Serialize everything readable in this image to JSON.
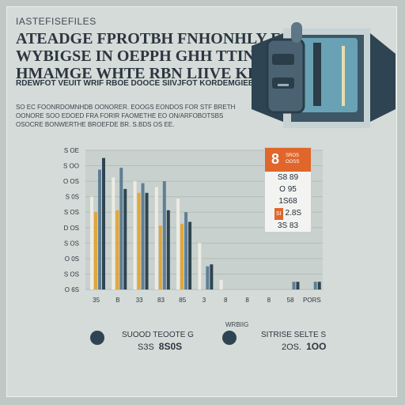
{
  "header": {
    "kicker": "IASTEFISEFILES",
    "headline": [
      "ATEADGE FPROTBH FNHONHLY FOR",
      "WYBIGSE IN OEPPH GHH TTINGTHER",
      "HMAMGE WHTE RBN LIIVE KES IOLET"
    ],
    "subhead": "RDEWFOT VEUIT WRIF RBOE DOOCE SIIVJFOT KORDEMGIEES"
  },
  "body_text": [
    "SO EC FOONRDOMNHDB OONORER. EOOGS EONDOS FOR STF BRETH",
    "OONORE SOO EDOED FRA FORIR FAOMETHE EO ON/ARFOBOTSBS",
    "OSOCRE BONWERTHE BROEFDE BR. S.BDS OS EE."
  ],
  "chart_data": {
    "type": "bar",
    "categories": [
      "35",
      "B",
      "33",
      "83",
      "85",
      "3",
      "8",
      "8",
      "8",
      "58",
      "PORS"
    ],
    "series": [
      {
        "color": "#ecebe4",
        "values": [
          4.8,
          5.8,
          5.6,
          5.3,
          4.7,
          2.4,
          0.5,
          0,
          0,
          0,
          0
        ]
      },
      {
        "color": "#e2a637",
        "values": [
          4.0,
          4.1,
          5.0,
          3.3,
          3.4,
          0,
          0,
          0,
          0,
          0,
          0
        ]
      },
      {
        "color": "#5f7f95",
        "values": [
          6.2,
          6.3,
          5.5,
          5.6,
          4.0,
          1.2,
          0,
          0,
          0,
          0.4,
          0.4
        ]
      },
      {
        "color": "#2f4452",
        "values": [
          6.8,
          5.2,
          5.0,
          4.1,
          3.5,
          1.3,
          0,
          0,
          0,
          0.4,
          0.4
        ]
      }
    ],
    "y_ticks": [
      "S OE",
      "S OO",
      "O OS",
      "S 0S",
      "S OS",
      "D OS",
      "S OS",
      "O 0S",
      "S OS",
      "O 6S"
    ],
    "ylim": [
      0,
      7.2
    ],
    "grid": true,
    "legend": "none"
  },
  "callout": {
    "number": "8",
    "subtitle": [
      "SROS",
      "OOSS"
    ],
    "rows": [
      "S8 89",
      "O 95",
      "1S68",
      "2.8S",
      "3S 83"
    ],
    "mark": "SI"
  },
  "stats": [
    {
      "label": "SUOOD TEOOTE G",
      "value_small": "S3S",
      "value_big": "8S0S"
    },
    {
      "tag": "WRBIIG",
      "label": "SITRISE SELTE S",
      "value_small": "2OS.",
      "value_big": "1OO"
    }
  ],
  "colors": {
    "background": "#bfc8c4",
    "panel": "#d4dbd8",
    "accent": "#e0662b",
    "navy": "#2f4452",
    "steel": "#5f7f95",
    "gold": "#e2a637"
  },
  "icons": [
    "server-device-icon",
    "stat-bullet-icon"
  ]
}
